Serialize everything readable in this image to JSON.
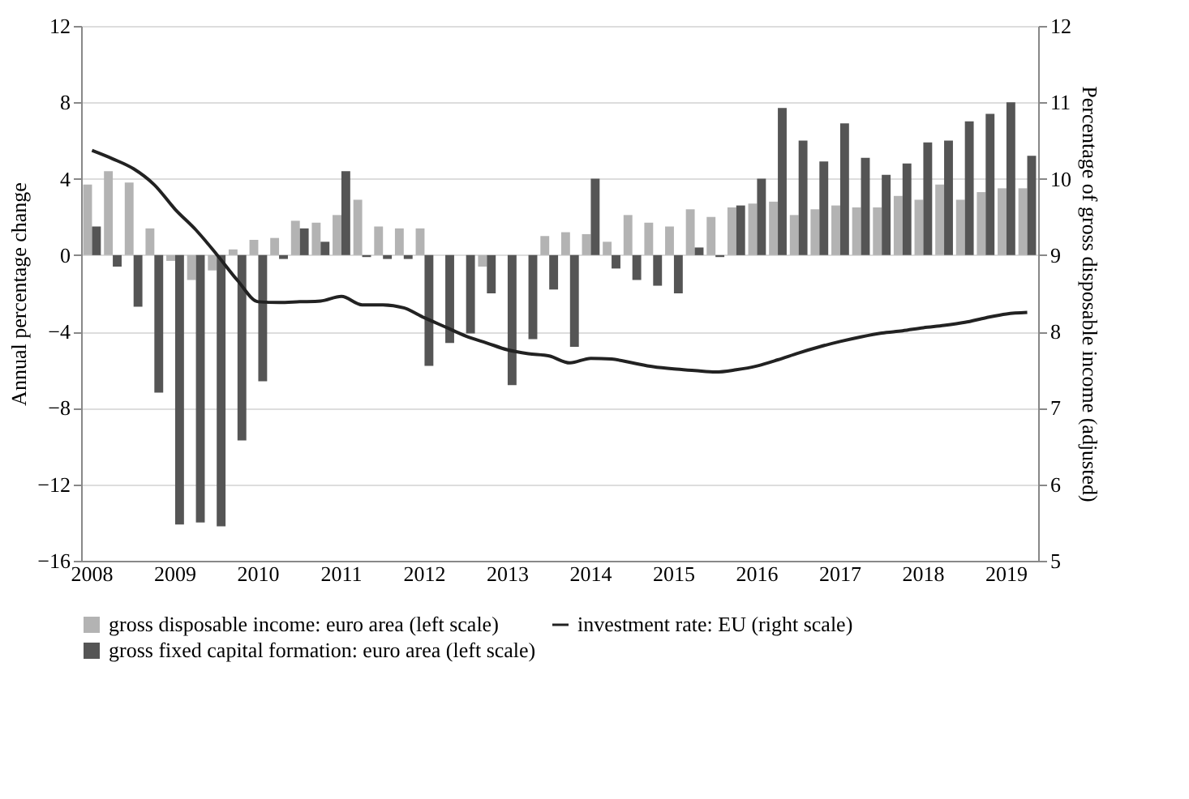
{
  "chart_data": {
    "type": "bar",
    "categories": [
      "2008",
      null,
      null,
      null,
      "2009",
      null,
      null,
      null,
      "2010",
      null,
      null,
      null,
      "2011",
      null,
      null,
      null,
      "2012",
      null,
      null,
      null,
      "2013",
      null,
      null,
      null,
      "2014",
      null,
      null,
      null,
      "2015",
      null,
      null,
      null,
      "2016",
      null,
      null,
      null,
      "2017",
      null,
      null,
      null,
      "2018",
      null,
      null,
      null,
      "2019",
      null
    ],
    "series": [
      {
        "name": "gross disposable income: euro area (left scale)",
        "color": "#b3b3b3",
        "values": [
          3.7,
          4.4,
          3.8,
          1.4,
          -0.3,
          -1.3,
          -0.8,
          0.3,
          0.8,
          0.9,
          1.8,
          1.7,
          2.1,
          2.9,
          1.5,
          1.4,
          1.4,
          null,
          null,
          -0.6,
          null,
          null,
          1.0,
          1.2,
          1.1,
          0.7,
          2.1,
          1.7,
          1.5,
          2.4,
          2.0,
          2.5,
          2.7,
          2.8,
          2.1,
          2.4,
          2.6,
          2.5,
          2.5,
          3.1,
          2.9,
          3.7,
          2.9,
          3.3,
          3.5,
          3.5
        ]
      },
      {
        "name": "gross fixed capital formation: euro area (left scale)",
        "color": "#555555",
        "values": [
          1.5,
          -0.6,
          -2.7,
          -7.2,
          -14.1,
          -14.0,
          -14.2,
          -9.7,
          -6.6,
          -0.2,
          1.4,
          0.7,
          4.4,
          -0.1,
          -0.2,
          -0.2,
          -5.8,
          -4.6,
          -4.1,
          -2.0,
          -6.8,
          -4.4,
          -1.8,
          -4.8,
          4.0,
          -0.7,
          -1.3,
          -1.6,
          -2.0,
          0.4,
          -0.1,
          2.6,
          4.0,
          7.7,
          6.0,
          4.9,
          6.9,
          5.1,
          4.2,
          4.8,
          5.9,
          6.0,
          7.0,
          7.4,
          8.0,
          5.2
        ]
      },
      {
        "name": "investment rate: EU (right scale)",
        "color": "#222222",
        "type": "line",
        "axis": "y2",
        "values": [
          10.37,
          10.26,
          10.13,
          9.92,
          9.6,
          9.33,
          9.01,
          8.67,
          8.39,
          8.38,
          8.39,
          8.4,
          8.46,
          8.35,
          8.35,
          8.31,
          8.18,
          8.06,
          7.94,
          7.85,
          7.76,
          7.71,
          7.68,
          7.59,
          7.65,
          7.64,
          7.59,
          7.54,
          7.51,
          7.49,
          7.47,
          7.5,
          7.55,
          7.63,
          7.72,
          7.8,
          7.87,
          7.93,
          7.98,
          8.01,
          8.05,
          8.08,
          8.12,
          8.18,
          8.23,
          8.25
        ]
      }
    ],
    "ylabel": "Annual percentage change",
    "y2label": "Percentage of gross disposable income (adjusted)",
    "ylim": [
      -16,
      12
    ],
    "yticks": [
      -16,
      -12,
      -8,
      -4,
      0,
      4,
      8,
      12
    ],
    "y2lim": [
      5,
      12
    ],
    "y2ticks": [
      5,
      6,
      7,
      8,
      9,
      10,
      11,
      12
    ],
    "grid": "y",
    "legend": "bottom"
  }
}
